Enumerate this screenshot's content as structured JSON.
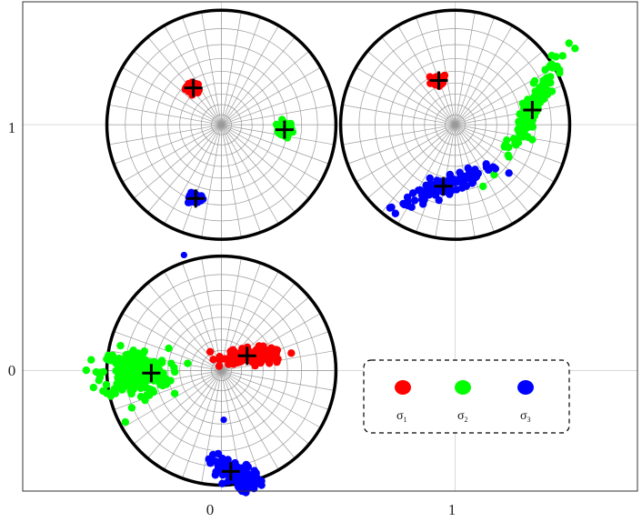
{
  "chart_data": {
    "type": "scatter",
    "title": "",
    "xlabel": "",
    "ylabel": "",
    "xlim": [
      -0.85,
      1.78
    ],
    "ylim": [
      -0.49,
      1.5
    ],
    "grid": true,
    "x_ticks": [
      {
        "value": 0,
        "label": "0"
      },
      {
        "value": 1,
        "label": "1"
      }
    ],
    "y_ticks": [
      {
        "value": 0,
        "label": "0"
      },
      {
        "value": 1,
        "label": "1"
      }
    ],
    "stereonets": [
      {
        "center": [
          0,
          1
        ],
        "radius": 0.49,
        "clusters": [
          {
            "series": "sigma1",
            "center": [
              -0.12,
              1.15
            ],
            "spread": [
              0.03,
              0.02
            ],
            "angle": 0,
            "count": 40,
            "outliers": []
          },
          {
            "series": "sigma2",
            "center": [
              0.27,
              0.98
            ],
            "spread": [
              0.03,
              0.03
            ],
            "angle": 0,
            "count": 40,
            "outliers": []
          },
          {
            "series": "sigma3",
            "center": [
              -0.11,
              0.7
            ],
            "spread": [
              0.03,
              0.02
            ],
            "angle": 0,
            "count": 40,
            "outliers": []
          }
        ],
        "means": [
          {
            "series": "sigma1",
            "point": [
              -0.12,
              1.15
            ]
          },
          {
            "series": "sigma2",
            "point": [
              0.27,
              0.98
            ]
          },
          {
            "series": "sigma3",
            "point": [
              -0.11,
              0.7
            ]
          }
        ]
      },
      {
        "center": [
          1,
          1
        ],
        "radius": 0.49,
        "clusters": [
          {
            "series": "sigma1",
            "center": [
              0.93,
              1.18
            ],
            "spread": [
              0.03,
              0.025
            ],
            "angle": 0,
            "count": 40,
            "outliers": []
          },
          {
            "series": "sigma2",
            "center": [
              1.33,
              1.07
            ],
            "spread": [
              0.2,
              0.035
            ],
            "angle": 60,
            "count": 120,
            "outliers": []
          },
          {
            "series": "sigma3",
            "center": [
              0.96,
              0.75
            ],
            "spread": [
              0.22,
              0.03
            ],
            "angle": 20,
            "count": 120,
            "outliers": []
          }
        ],
        "means": [
          {
            "series": "sigma1",
            "point": [
              0.93,
              1.18
            ]
          },
          {
            "series": "sigma2",
            "point": [
              1.33,
              1.06
            ]
          },
          {
            "series": "sigma3",
            "point": [
              0.95,
              0.75
            ]
          }
        ]
      },
      {
        "center": [
          0,
          0
        ],
        "radius": 0.49,
        "clusters": [
          {
            "series": "sigma1",
            "center": [
              0.14,
              0.06
            ],
            "spread": [
              0.12,
              0.03
            ],
            "angle": 0,
            "count": 120,
            "outliers": []
          },
          {
            "series": "sigma2",
            "center": [
              -0.37,
              -0.01
            ],
            "spread": [
              0.13,
              0.09
            ],
            "angle": 0,
            "count": 220,
            "outliers": []
          },
          {
            "series": "sigma3",
            "center": [
              0.05,
              -0.42
            ],
            "spread": [
              0.1,
              0.045
            ],
            "angle": -25,
            "count": 120,
            "outliers": [
              [
                -0.16,
                0.47
              ],
              [
                0.01,
                -0.2
              ]
            ]
          }
        ],
        "means": [
          {
            "series": "sigma1",
            "point": [
              0.11,
              0.06
            ]
          },
          {
            "series": "sigma2",
            "point": [
              -0.3,
              -0.01
            ]
          },
          {
            "series": "sigma3",
            "point": [
              0.04,
              -0.41
            ]
          }
        ]
      }
    ],
    "series": [
      {
        "key": "sigma1",
        "symbol": "σ",
        "subscript": "1",
        "color": "#ff0000"
      },
      {
        "key": "sigma2",
        "symbol": "σ",
        "subscript": "2",
        "color": "#00ff00"
      },
      {
        "key": "sigma3",
        "symbol": "σ",
        "subscript": "3",
        "color": "#0000ff"
      }
    ],
    "legend": {
      "placement": "bottom-right",
      "border": "dashed"
    },
    "colors": {
      "axes": "#333333",
      "grid": "#d9d9d9",
      "net_lines": "#9a9a9a",
      "circle": "#000000",
      "mean_marker": "#000000"
    }
  }
}
